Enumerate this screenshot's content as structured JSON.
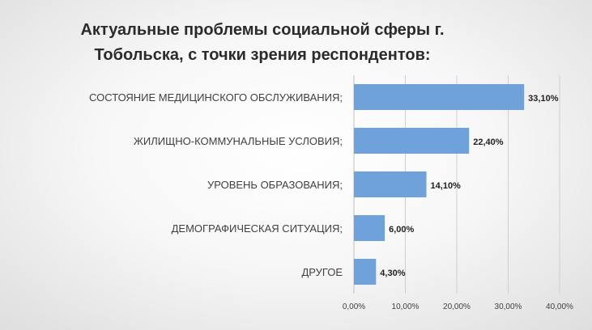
{
  "chart_data": {
    "type": "bar",
    "orientation": "horizontal",
    "title_lines": [
      "Актуальные проблемы социальной сферы г.",
      "Тобольска, с точки зрения респондентов:"
    ],
    "categories": [
      "СОСТОЯНИЕ МЕДИЦИНСКОГО ОБСЛУЖИВАНИЯ;",
      "ЖИЛИЩНО-КОММУНАЛЬНЫЕ УСЛОВИЯ;",
      "УРОВЕНЬ ОБРАЗОВАНИЯ;",
      "ДЕМОГРАФИЧЕСКАЯ СИТУАЦИЯ;",
      "ДРУГОЕ"
    ],
    "values": [
      33.1,
      22.4,
      14.1,
      6.0,
      4.3
    ],
    "value_labels": [
      "33,10%",
      "22,40%",
      "14,10%",
      "6,00%",
      "4,30%"
    ],
    "x_ticks": [
      0,
      10,
      20,
      30,
      40
    ],
    "x_tick_labels": [
      "0,00%",
      "10,00%",
      "20,00%",
      "30,00%",
      "40,00%"
    ],
    "xlim": [
      0,
      40
    ],
    "grid": true,
    "legend": "none",
    "bar_color": "#6fa2da",
    "grid_color": "#cfcfcf",
    "axis_color": "#bfbfbf"
  }
}
